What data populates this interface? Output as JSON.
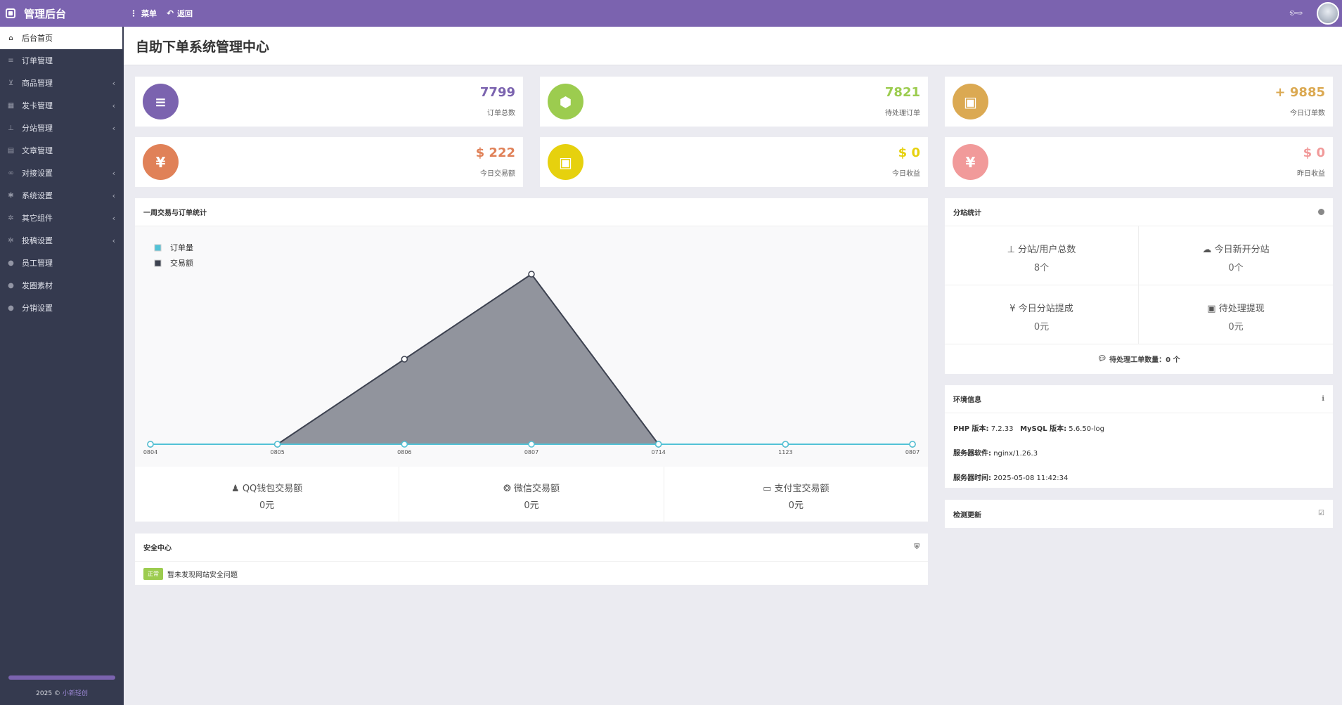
{
  "app": {
    "title": "管理后台"
  },
  "topnav": {
    "menu_label": "菜单",
    "back_label": "返回"
  },
  "sidebar": {
    "items": [
      {
        "label": "后台首页",
        "active": true,
        "icon": "home-icon"
      },
      {
        "label": "订单管理",
        "icon": "list-icon"
      },
      {
        "label": "商品管理",
        "icon": "cart-icon",
        "chev": "‹"
      },
      {
        "label": "发卡管理",
        "icon": "grid-icon",
        "chev": "‹"
      },
      {
        "label": "分站管理",
        "icon": "sitemap-icon",
        "chev": "‹"
      },
      {
        "label": "文章管理",
        "icon": "book-icon"
      },
      {
        "label": "对接设置",
        "icon": "link-icon",
        "chev": "‹"
      },
      {
        "label": "系统设置",
        "icon": "gear-icon",
        "chev": "‹"
      },
      {
        "label": "其它组件",
        "icon": "cogs-icon",
        "chev": "‹"
      },
      {
        "label": "投稿设置",
        "icon": "cogs-icon",
        "chev": "‹"
      },
      {
        "label": "员工管理",
        "icon": "user-icon"
      },
      {
        "label": "发圈素材",
        "icon": "user-icon"
      },
      {
        "label": "分销设置",
        "icon": "user-icon"
      }
    ],
    "footer_year": "2025 ©",
    "footer_brand": "小新轻创"
  },
  "page": {
    "title": "自助下单系统管理中心"
  },
  "stats": [
    {
      "value": "7799",
      "label": "订单总数",
      "color": "#7b63af",
      "icon": "list-icon"
    },
    {
      "value": "7821",
      "label": "待处理订单",
      "color": "#9ccc4f",
      "icon": "cube-icon"
    },
    {
      "value": "+ 9885",
      "label": "今日订单数",
      "color": "#dba952",
      "icon": "briefcase-icon"
    },
    {
      "value": "$ 222",
      "label": "今日交易额",
      "color": "#e08158",
      "icon": "yen-icon"
    },
    {
      "value": "$ 0",
      "label": "今日收益",
      "color": "#e6d10e",
      "icon": "briefcase-icon"
    },
    {
      "value": "$ 0",
      "label": "昨日收益",
      "color": "#f19a9a",
      "icon": "yen-icon"
    }
  ],
  "weekly": {
    "title": "一周交易与订单统计"
  },
  "chart_data": {
    "type": "area",
    "categories": [
      "0804",
      "0805",
      "0806",
      "0807",
      "0714",
      "1123",
      "0807"
    ],
    "series": [
      {
        "name": "订单量",
        "values": [
          0,
          0,
          0,
          0,
          0,
          0,
          0
        ],
        "color": "#52c2d6"
      },
      {
        "name": "交易额",
        "values": [
          0,
          0,
          111,
          222,
          0,
          0,
          0
        ],
        "color": "#3d4250"
      }
    ],
    "legend": "top-left",
    "grid": false
  },
  "payments": [
    {
      "label": "QQ钱包交易额",
      "value": "0元",
      "icon": "qq-icon"
    },
    {
      "label": "微信交易额",
      "value": "0元",
      "icon": "wechat-icon"
    },
    {
      "label": "支付宝交易额",
      "value": "0元",
      "icon": "credit-card-icon"
    }
  ],
  "security": {
    "title": "安全中心",
    "badge": "正常",
    "message": "暂未发现网站安全问题"
  },
  "branch": {
    "title": "分站统计",
    "cells": [
      {
        "label": "分站/用户总数",
        "value": "8个",
        "icon": "sitemap-icon"
      },
      {
        "label": "今日新开分站",
        "value": "0个",
        "icon": "cloud-icon"
      },
      {
        "label": "今日分站提成",
        "value": "0元",
        "icon": "yen-icon"
      },
      {
        "label": "待处理提现",
        "value": "0元",
        "icon": "money-icon"
      }
    ],
    "ticket": "待处理工单数量：0 个"
  },
  "env": {
    "title": "环境信息",
    "php_label": "PHP 版本:",
    "php_value": "7.2.33",
    "mysql_label": "MySQL 版本:",
    "mysql_value": "5.6.50-log",
    "server_label": "服务器软件:",
    "server_value": "nginx/1.26.3",
    "time_label": "服务器时间:",
    "time_value": "2025-05-08 11:42:34"
  },
  "update": {
    "title": "检测更新"
  }
}
